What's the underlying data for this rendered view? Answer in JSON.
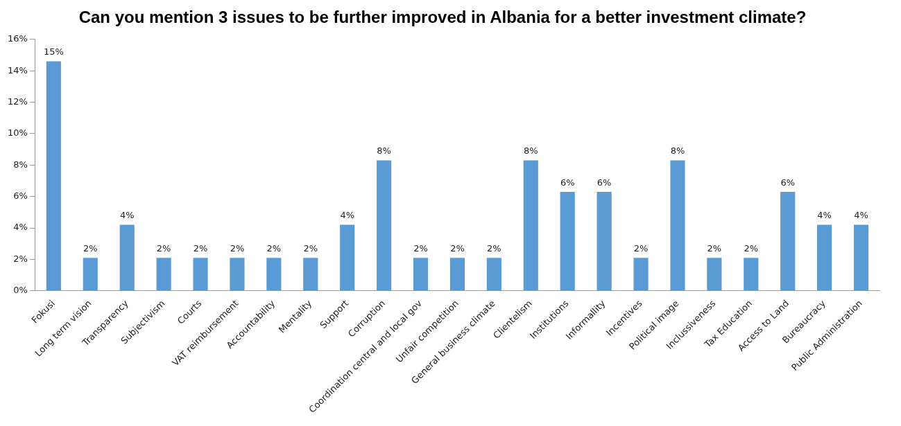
{
  "chart_data": {
    "type": "bar",
    "title": "Can you mention 3 issues to be further improved in Albania for a better investment climate?",
    "categories": [
      "Fokusi",
      "Long term vision",
      "Transparency",
      "Subjectivism",
      "Courts",
      "VAT reimbursement",
      "Accountability",
      "Mentality",
      "Support",
      "Corruption",
      "Coordination central and local gov",
      "Unfair competition",
      "General business climate",
      "Clientelism",
      "Institutions",
      "Informallity",
      "Incentives",
      "Political image",
      "Inclussiveness",
      "Tax Education",
      "Access to Land",
      "Bureaucracy",
      "Public Administration"
    ],
    "values": [
      14.6,
      2.1,
      4.2,
      2.1,
      2.1,
      2.1,
      2.1,
      2.1,
      4.2,
      8.3,
      2.1,
      2.1,
      2.1,
      8.3,
      6.3,
      6.3,
      2.1,
      8.3,
      2.1,
      2.1,
      6.3,
      4.2,
      4.2
    ],
    "value_labels": [
      "15%",
      "2%",
      "4%",
      "2%",
      "2%",
      "2%",
      "2%",
      "2%",
      "4%",
      "8%",
      "2%",
      "2%",
      "2%",
      "8%",
      "6%",
      "6%",
      "2%",
      "8%",
      "2%",
      "2%",
      "6%",
      "4%",
      "4%"
    ],
    "color": "#5b9bd5",
    "ylim": [
      0,
      16
    ],
    "yticks": [
      {
        "value": 0,
        "label": "0%"
      },
      {
        "value": 2,
        "label": "2%"
      },
      {
        "value": 4,
        "label": "4%"
      },
      {
        "value": 6,
        "label": "6%"
      },
      {
        "value": 8,
        "label": "8%"
      },
      {
        "value": 10,
        "label": "10%"
      },
      {
        "value": 12,
        "label": "12%"
      },
      {
        "value": 14,
        "label": "14%"
      },
      {
        "value": 16,
        "label": "16%"
      }
    ],
    "grid": false,
    "legend": false
  }
}
